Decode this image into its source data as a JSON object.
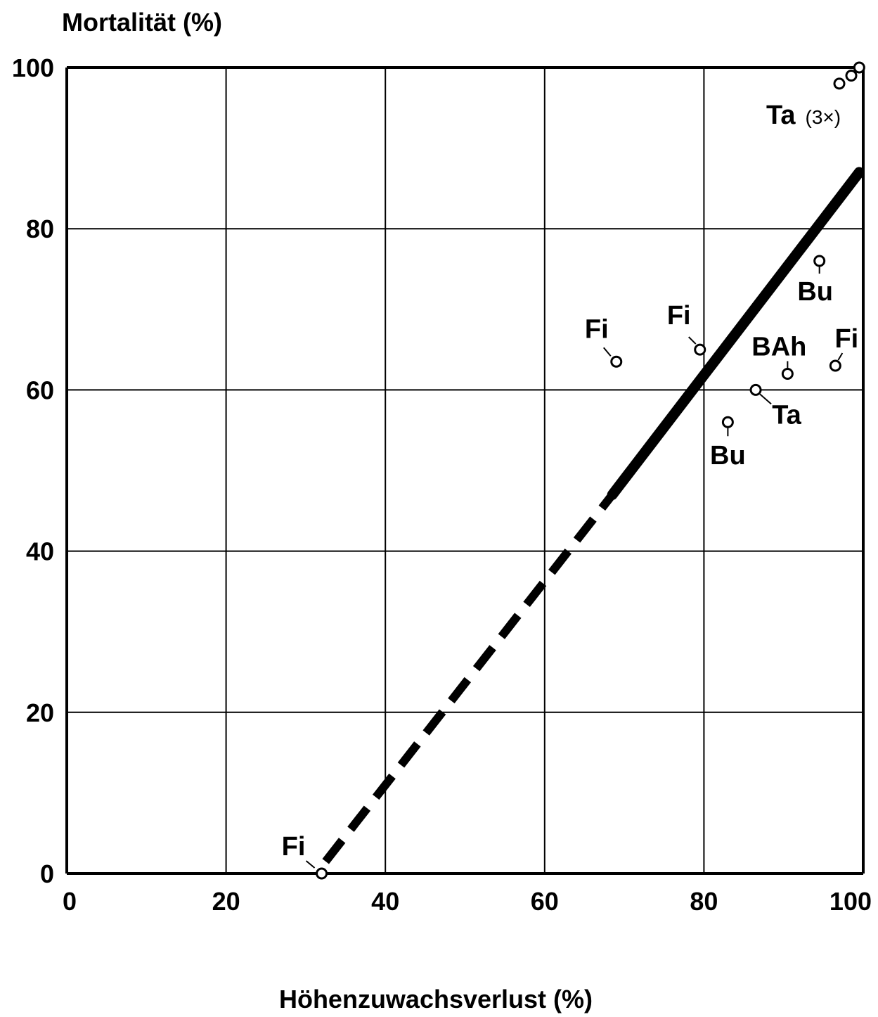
{
  "chart_data": {
    "type": "scatter",
    "title": "",
    "ylabel": "Mortalität (%)",
    "xlabel": "Höhenzuwachsverlust (%)",
    "xlim": [
      0,
      100
    ],
    "ylim": [
      0,
      100
    ],
    "x_ticks": [
      "0",
      "20",
      "40",
      "60",
      "80",
      "100"
    ],
    "y_ticks": [
      "0",
      "20",
      "40",
      "60",
      "80",
      "100"
    ],
    "grid": true,
    "points": [
      {
        "label": "Fi",
        "x": 32,
        "y": 0
      },
      {
        "label": "Fi",
        "x": 69,
        "y": 63.5
      },
      {
        "label": "Fi",
        "x": 79.5,
        "y": 65
      },
      {
        "label": "BAh",
        "x": 90.5,
        "y": 62
      },
      {
        "label": "Fi",
        "x": 96.5,
        "y": 63
      },
      {
        "label": "Ta",
        "x": 86.5,
        "y": 60
      },
      {
        "label": "Bu",
        "x": 83,
        "y": 56
      },
      {
        "label": "Bu",
        "x": 94.5,
        "y": 76
      },
      {
        "label": "Ta",
        "x": 97,
        "y": 98
      },
      {
        "label": "Ta",
        "x": 98.5,
        "y": 99
      },
      {
        "label": "Ta",
        "x": 99.5,
        "y": 100
      }
    ],
    "annotations": [
      {
        "text": "Ta",
        "note": "(3×)"
      }
    ],
    "regression": {
      "dashed": {
        "x": [
          32.5,
          68.5
        ],
        "y": [
          1.5,
          47
        ]
      },
      "solid": {
        "x": [
          68.5,
          99.5
        ],
        "y": [
          47,
          87
        ]
      }
    }
  }
}
